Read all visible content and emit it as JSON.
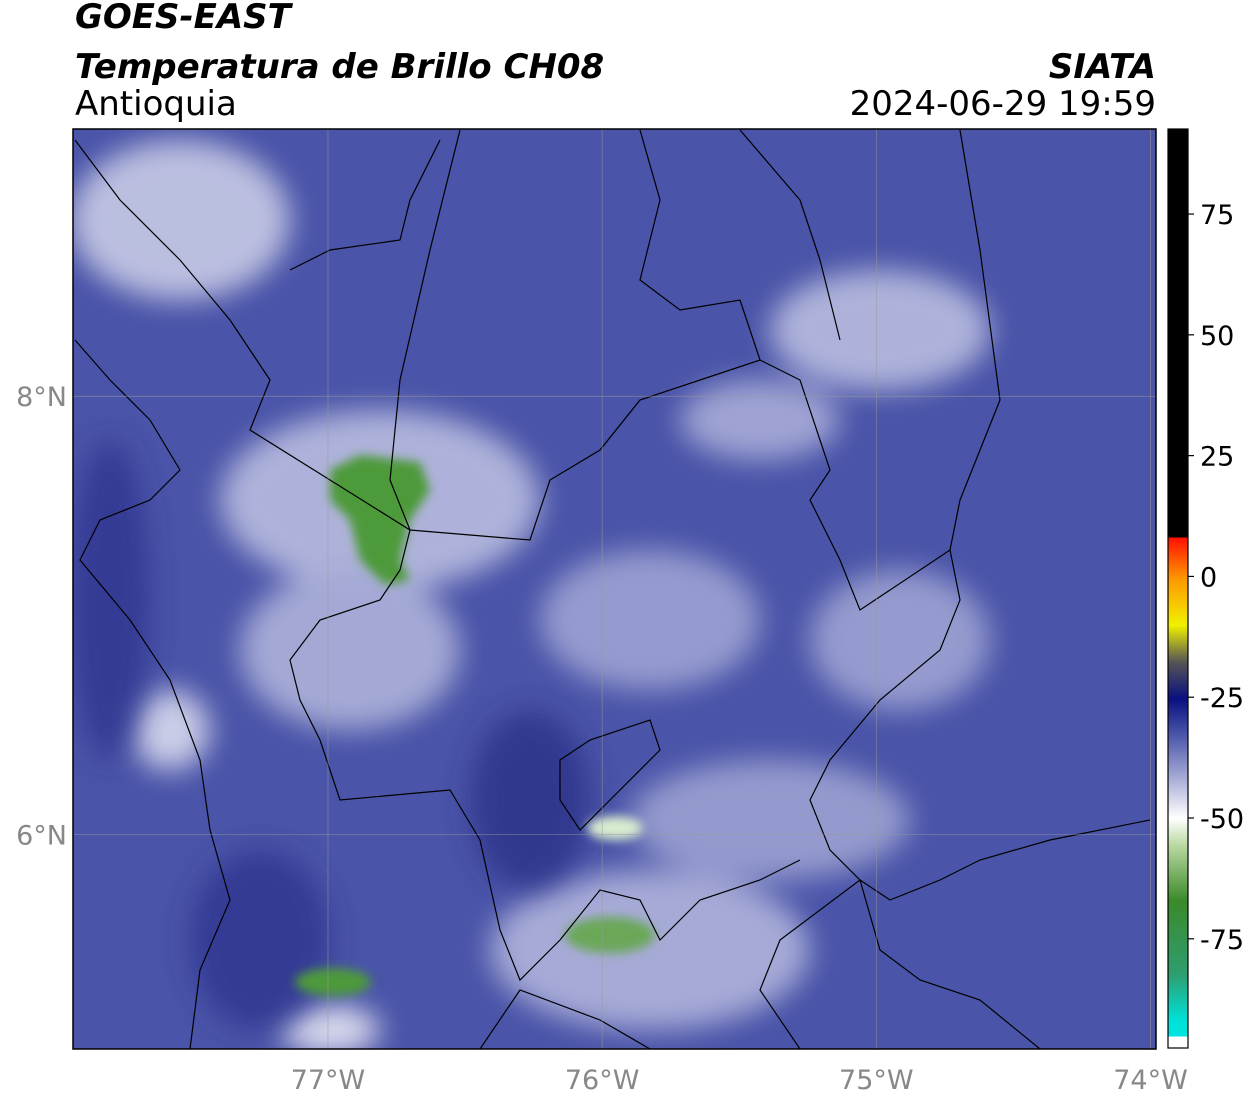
{
  "header": {
    "title": "GOES-EAST",
    "subtitle": "Temperatura de Brillo CH08",
    "region": "Antioquia",
    "agency": "SIATA",
    "datetime": "2024-06-29 19:59"
  },
  "map": {
    "xlim": [
      -77.93,
      -73.98
    ],
    "ylim": [
      5.02,
      9.22
    ],
    "lon_ticks": [
      {
        "value": -77,
        "label": "77°W"
      },
      {
        "value": -76,
        "label": "76°W"
      },
      {
        "value": -75,
        "label": "75°W"
      },
      {
        "value": -74,
        "label": "74°W"
      }
    ],
    "lat_ticks": [
      {
        "value": 8,
        "label": "8°N"
      },
      {
        "value": 6,
        "label": "6°N"
      }
    ]
  },
  "colorbar": {
    "lim": [
      -97.6,
      92.6
    ],
    "ticks": [
      75,
      50,
      25,
      0,
      -25,
      -50,
      -75
    ]
  }
}
